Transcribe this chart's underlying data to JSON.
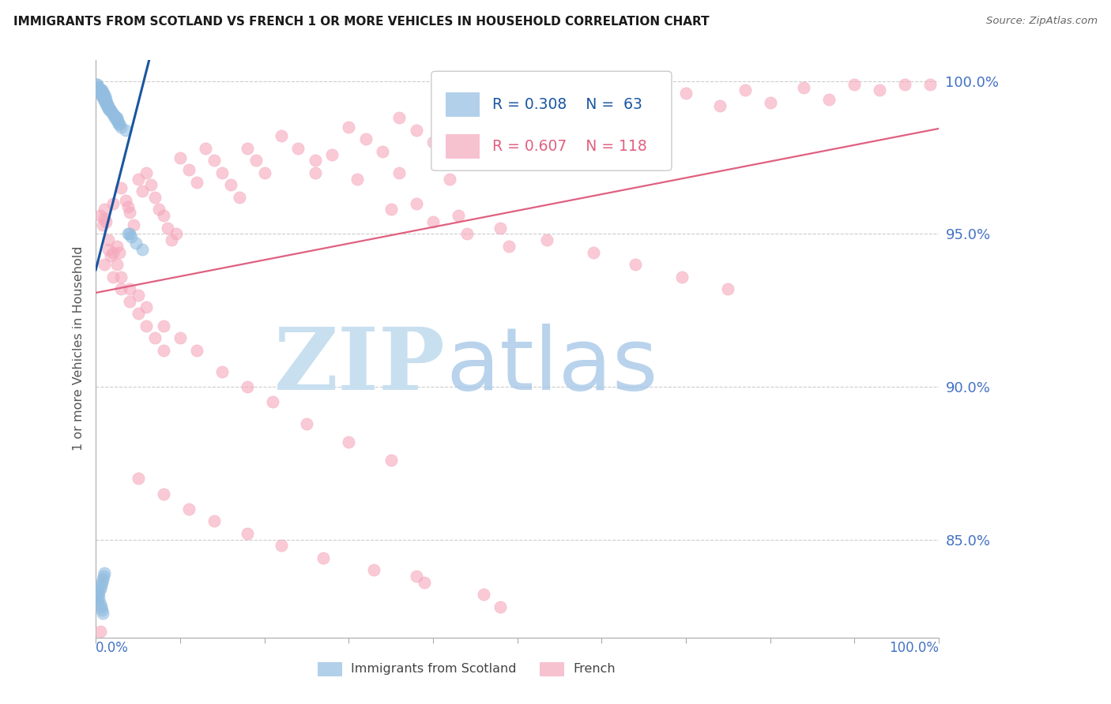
{
  "title": "IMMIGRANTS FROM SCOTLAND VS FRENCH 1 OR MORE VEHICLES IN HOUSEHOLD CORRELATION CHART",
  "source": "Source: ZipAtlas.com",
  "ylabel": "1 or more Vehicles in Household",
  "ytick_labels": [
    "100.0%",
    "95.0%",
    "90.0%",
    "85.0%"
  ],
  "ytick_values": [
    1.0,
    0.95,
    0.9,
    0.85
  ],
  "xmin": 0.0,
  "xmax": 1.0,
  "ymin": 0.818,
  "ymax": 1.007,
  "legend_label_blue": "Immigrants from Scotland",
  "legend_label_pink": "French",
  "blue_scatter_color": "#92bde0",
  "pink_scatter_color": "#f5a8bc",
  "blue_line_color": "#1a56a0",
  "pink_line_color": "#e06080",
  "axis_label_color": "#4472c4",
  "grid_color": "#cccccc",
  "spine_color": "#aaaaaa",
  "watermark_zip_color": "#c8dff0",
  "watermark_atlas_color": "#a8c8e8",
  "scotland_x": [
    0.001,
    0.002,
    0.002,
    0.003,
    0.003,
    0.004,
    0.004,
    0.005,
    0.005,
    0.006,
    0.006,
    0.007,
    0.007,
    0.007,
    0.008,
    0.008,
    0.009,
    0.009,
    0.01,
    0.01,
    0.011,
    0.011,
    0.012,
    0.012,
    0.013,
    0.013,
    0.014,
    0.015,
    0.015,
    0.016,
    0.017,
    0.018,
    0.019,
    0.02,
    0.021,
    0.022,
    0.024,
    0.025,
    0.025,
    0.026,
    0.027,
    0.028,
    0.03,
    0.003,
    0.004,
    0.005,
    0.006,
    0.007,
    0.008,
    0.009,
    0.01,
    0.003,
    0.004,
    0.005,
    0.006,
    0.007,
    0.008,
    0.035,
    0.038,
    0.04,
    0.042,
    0.048,
    0.055
  ],
  "scotland_y": [
    0.999,
    0.999,
    0.998,
    0.998,
    0.997,
    0.998,
    0.997,
    0.997,
    0.996,
    0.997,
    0.996,
    0.997,
    0.996,
    0.995,
    0.996,
    0.995,
    0.996,
    0.994,
    0.995,
    0.994,
    0.995,
    0.993,
    0.994,
    0.993,
    0.993,
    0.992,
    0.992,
    0.992,
    0.991,
    0.991,
    0.991,
    0.99,
    0.99,
    0.989,
    0.989,
    0.988,
    0.988,
    0.987,
    0.988,
    0.987,
    0.986,
    0.986,
    0.985,
    0.832,
    0.833,
    0.834,
    0.835,
    0.836,
    0.837,
    0.838,
    0.839,
    0.83,
    0.831,
    0.829,
    0.828,
    0.827,
    0.826,
    0.984,
    0.95,
    0.95,
    0.949,
    0.947,
    0.945
  ],
  "french_x": [
    0.005,
    0.008,
    0.01,
    0.012,
    0.015,
    0.018,
    0.02,
    0.025,
    0.028,
    0.03,
    0.035,
    0.038,
    0.04,
    0.045,
    0.05,
    0.055,
    0.06,
    0.065,
    0.07,
    0.075,
    0.08,
    0.085,
    0.09,
    0.095,
    0.1,
    0.11,
    0.12,
    0.13,
    0.14,
    0.15,
    0.16,
    0.17,
    0.18,
    0.19,
    0.2,
    0.22,
    0.24,
    0.26,
    0.28,
    0.3,
    0.32,
    0.34,
    0.36,
    0.38,
    0.4,
    0.43,
    0.46,
    0.49,
    0.52,
    0.55,
    0.58,
    0.61,
    0.64,
    0.67,
    0.7,
    0.74,
    0.77,
    0.8,
    0.84,
    0.87,
    0.9,
    0.93,
    0.96,
    0.99,
    0.01,
    0.02,
    0.03,
    0.04,
    0.05,
    0.06,
    0.07,
    0.08,
    0.01,
    0.015,
    0.02,
    0.025,
    0.03,
    0.04,
    0.05,
    0.06,
    0.08,
    0.1,
    0.12,
    0.15,
    0.18,
    0.21,
    0.25,
    0.3,
    0.35,
    0.05,
    0.08,
    0.11,
    0.14,
    0.18,
    0.22,
    0.27,
    0.33,
    0.39,
    0.46,
    0.35,
    0.4,
    0.44,
    0.49,
    0.38,
    0.43,
    0.48,
    0.535,
    0.59,
    0.64,
    0.695,
    0.75,
    0.005,
    0.38,
    0.48,
    0.42,
    0.36,
    0.31,
    0.26
  ],
  "french_y": [
    0.956,
    0.953,
    0.958,
    0.954,
    0.945,
    0.943,
    0.96,
    0.946,
    0.944,
    0.965,
    0.961,
    0.959,
    0.957,
    0.953,
    0.968,
    0.964,
    0.97,
    0.966,
    0.962,
    0.958,
    0.956,
    0.952,
    0.948,
    0.95,
    0.975,
    0.971,
    0.967,
    0.978,
    0.974,
    0.97,
    0.966,
    0.962,
    0.978,
    0.974,
    0.97,
    0.982,
    0.978,
    0.974,
    0.976,
    0.985,
    0.981,
    0.977,
    0.988,
    0.984,
    0.98,
    0.99,
    0.986,
    0.982,
    0.992,
    0.988,
    0.993,
    0.989,
    0.994,
    0.99,
    0.996,
    0.992,
    0.997,
    0.993,
    0.998,
    0.994,
    0.999,
    0.997,
    0.999,
    0.999,
    0.94,
    0.936,
    0.932,
    0.928,
    0.924,
    0.92,
    0.916,
    0.912,
    0.955,
    0.948,
    0.944,
    0.94,
    0.936,
    0.932,
    0.93,
    0.926,
    0.92,
    0.916,
    0.912,
    0.905,
    0.9,
    0.895,
    0.888,
    0.882,
    0.876,
    0.87,
    0.865,
    0.86,
    0.856,
    0.852,
    0.848,
    0.844,
    0.84,
    0.836,
    0.832,
    0.958,
    0.954,
    0.95,
    0.946,
    0.96,
    0.956,
    0.952,
    0.948,
    0.944,
    0.94,
    0.936,
    0.932,
    0.82,
    0.838,
    0.828,
    0.968,
    0.97,
    0.968,
    0.97
  ],
  "dot_size": 120,
  "blue_line_x_end": 0.068,
  "xtick_positions": [
    0.0,
    0.1,
    0.2,
    0.3,
    0.4,
    0.5,
    0.6,
    0.7,
    0.8,
    0.9,
    1.0
  ]
}
